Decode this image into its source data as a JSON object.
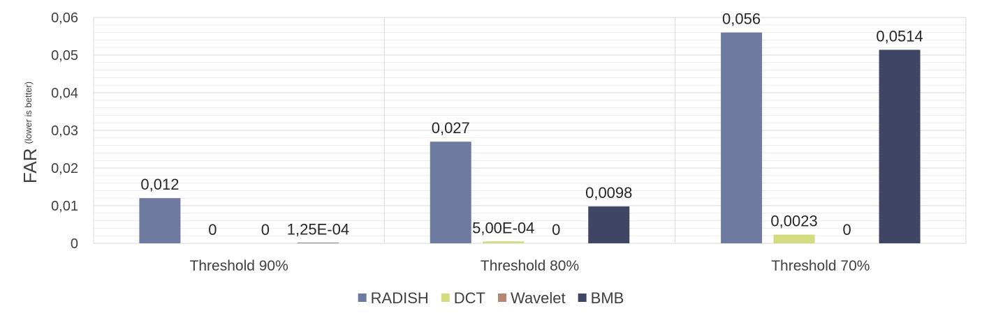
{
  "chart_data": {
    "type": "bar",
    "categories": [
      "Threshold 90%",
      "Threshold 80%",
      "Threshold 70%"
    ],
    "series": [
      {
        "name": "RADISH",
        "color": "#6f7aa0",
        "values": [
          0.012,
          0.027,
          0.056
        ],
        "labels": [
          "0,012",
          "0,027",
          "0,056"
        ]
      },
      {
        "name": "DCT",
        "color": "#d3dc7f",
        "values": [
          0,
          0.0005,
          0.0023
        ],
        "labels": [
          "0",
          "5,00E-04",
          "0,0023"
        ]
      },
      {
        "name": "Wavelet",
        "color": "#b68672",
        "values": [
          0,
          0,
          0
        ],
        "labels": [
          "0",
          "0",
          "0"
        ]
      },
      {
        "name": "BMB",
        "color": "#3f4663",
        "values": [
          0.000125,
          0.0098,
          0.0514
        ],
        "labels": [
          "1,25E-04",
          "0,0098",
          "0,0514"
        ]
      }
    ],
    "ylabel": "FAR",
    "ylabel_note": "(lower is better)",
    "ylim": [
      0,
      0.06
    ],
    "yticks": [
      0,
      0.01,
      0.02,
      0.03,
      0.04,
      0.05,
      0.06
    ],
    "ytick_labels": [
      "0",
      "0,01",
      "0,02",
      "0,03",
      "0,04",
      "0,05",
      "0,06"
    ],
    "grid": true,
    "legend": "bottom"
  }
}
